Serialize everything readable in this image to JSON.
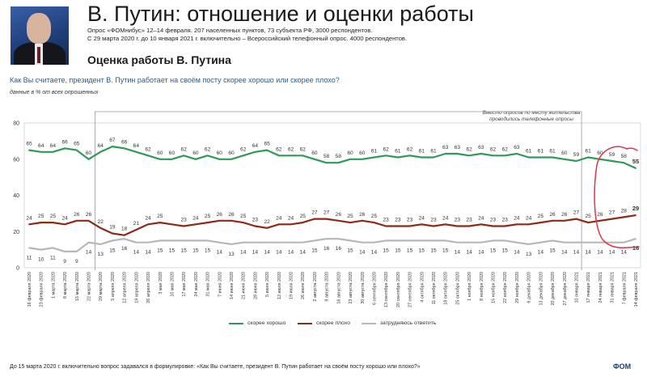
{
  "header": {
    "title": "В. Путин: отношение и оценки работы",
    "meta_line1": "Опрос «ФОМнибус» 12–14 февраля. 207 населенных пунктов, 73 субъекта РФ, 3000 респондентов.",
    "meta_line2": "С 29 марта 2020 г. до 10 января 2021 г. включительно – Всероссийский телефонный опрос. 4000 респондентов.",
    "subtitle": "Оценка работы В. Путина"
  },
  "question": "Как Вы считаете, президент В. Путин работает на своём посту скорее хорошо или скорее плохо?",
  "units_note": "данные в % от всех опрошенных",
  "phone_note_line1": "Вместо опросов по месту жительства",
  "phone_note_line2": "проводились телефонные опросы",
  "footer_note": "До 15 марта 2020 г. включительно вопрос задавался в формулировке: «Как Вы считаете, президент В. Путин работает на своём посту хорошо или плохо?»",
  "colors": {
    "good": "#2e9a5a",
    "bad": "#8c2a14",
    "hard": "#b7b7b7",
    "annotation": "#e23048",
    "phone_box": "#999999"
  },
  "chart_data": {
    "type": "line",
    "ylim": [
      0,
      80
    ],
    "yticks": [
      0,
      20,
      40,
      60,
      80
    ],
    "legend_position": "bottom",
    "grid": false,
    "x": [
      "16 февраля 2020",
      "23 февраля 2020",
      "1 марта 2020",
      "8 марта 2020",
      "15 марта 2020",
      "22 марта 2020",
      "29 марта 2020",
      "5 апреля 2020",
      "12 апреля 2020",
      "19 апреля 2020",
      "26 апреля 2020",
      "3 мая 2020",
      "10 мая 2020",
      "17 мая 2020",
      "24 мая 2020",
      "31 мая 2020",
      "7 июня 2020",
      "14 июня 2020",
      "21 июня 2020",
      "28 июня 2020",
      "5 июля 2020",
      "12 июля 2020",
      "19 июля 2020",
      "26 июля 2020",
      "2 августа 2020",
      "9 августа 2020",
      "16 августа 2020",
      "23 августа 2020",
      "30 августа 2020",
      "6 сентября 2020",
      "13 сентября 2020",
      "20 сентября 2020",
      "27 сентября 2020",
      "4 октября 2020",
      "11 октября 2020",
      "18 октября 2020",
      "25 октября 2020",
      "1 ноября 2020",
      "8 ноября 2020",
      "15 ноября 2020",
      "22 ноября 2020",
      "29 ноября 2020",
      "6 декабря 2020",
      "13 декабря 2020",
      "20 декабря 2020",
      "27 декабря 2020",
      "10 января 2021",
      "17 января 2021",
      "24 января 2021",
      "31 января 2021",
      "7 февраля 2021",
      "14 февраля 2021"
    ],
    "phone_period": {
      "from_index": 6,
      "to_index": 46
    },
    "series": [
      {
        "name": "скорее хорошо",
        "color_key": "good",
        "values": [
          65,
          64,
          64,
          66,
          65,
          60,
          64,
          67,
          66,
          64,
          62,
          60,
          60,
          62,
          60,
          62,
          60,
          60,
          62,
          64,
          65,
          62,
          62,
          62,
          60,
          58,
          58,
          60,
          60,
          61,
          62,
          61,
          62,
          61,
          61,
          63,
          63,
          62,
          63,
          62,
          62,
          63,
          61,
          61,
          61,
          60,
          59,
          61,
          60,
          59,
          58,
          55
        ],
        "show_labels": [
          true,
          true,
          true,
          true,
          true,
          true,
          true,
          true,
          true,
          true,
          true,
          true,
          true,
          true,
          true,
          true,
          true,
          true,
          true,
          true,
          true,
          true,
          true,
          true,
          true,
          true,
          true,
          true,
          true,
          true,
          true,
          true,
          true,
          true,
          true,
          true,
          true,
          true,
          true,
          true,
          true,
          true,
          true,
          true,
          true,
          true,
          true,
          true,
          true,
          true,
          true,
          true
        ]
      },
      {
        "name": "скорее плохо",
        "color_key": "bad",
        "values": [
          24,
          25,
          25,
          24,
          26,
          26,
          22,
          19,
          18,
          21,
          24,
          25,
          24,
          23,
          24,
          25,
          26,
          26,
          25,
          23,
          22,
          24,
          24,
          25,
          27,
          27,
          26,
          25,
          26,
          25,
          23,
          23,
          23,
          24,
          23,
          24,
          23,
          23,
          24,
          23,
          23,
          24,
          24,
          25,
          26,
          26,
          27,
          25,
          26,
          27,
          28,
          29
        ],
        "show_labels": [
          true,
          true,
          true,
          true,
          true,
          true,
          true,
          true,
          true,
          true,
          true,
          true,
          false,
          true,
          true,
          true,
          true,
          true,
          true,
          true,
          true,
          true,
          true,
          true,
          true,
          true,
          true,
          true,
          true,
          true,
          true,
          true,
          true,
          true,
          true,
          true,
          true,
          true,
          true,
          true,
          true,
          true,
          true,
          true,
          true,
          true,
          true,
          true,
          true,
          true,
          true,
          true
        ]
      },
      {
        "name": "затрудняюсь ответить",
        "color_key": "hard",
        "values": [
          11,
          10,
          11,
          9,
          9,
          14,
          13,
          15,
          16,
          14,
          14,
          15,
          15,
          15,
          15,
          15,
          14,
          13,
          14,
          14,
          14,
          14,
          14,
          14,
          15,
          16,
          16,
          15,
          14,
          14,
          15,
          15,
          15,
          15,
          15,
          15,
          14,
          14,
          14,
          15,
          15,
          14,
          13,
          14,
          15,
          14,
          14,
          14,
          14,
          14,
          14,
          16
        ],
        "show_labels": [
          true,
          true,
          true,
          true,
          true,
          true,
          true,
          true,
          true,
          true,
          true,
          true,
          true,
          true,
          true,
          true,
          true,
          true,
          true,
          true,
          true,
          true,
          true,
          true,
          true,
          true,
          true,
          true,
          true,
          true,
          true,
          true,
          true,
          true,
          true,
          true,
          true,
          true,
          true,
          true,
          true,
          true,
          true,
          true,
          true,
          true,
          true,
          true,
          true,
          true,
          true,
          true
        ]
      }
    ]
  }
}
